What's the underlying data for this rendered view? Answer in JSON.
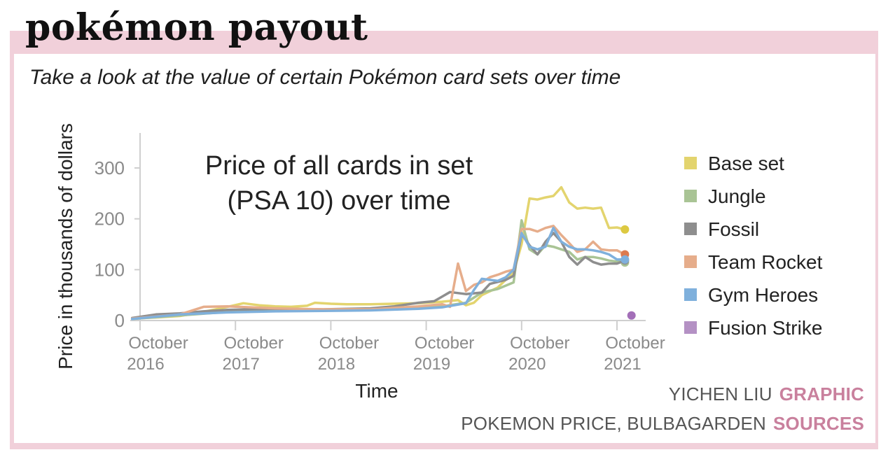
{
  "header": {
    "title": "pokémon payout",
    "subtitle": "Take a look at the value of certain Pokémon card sets over time"
  },
  "credits": {
    "author_name": "YICHEN LIU",
    "author_role": "GRAPHIC",
    "sources_names": "POKEMON PRICE, BULBAGARDEN",
    "sources_role": "SOURCES"
  },
  "colors": {
    "frame": "#f1d0da",
    "accent": "#c9809d",
    "axis": "#cfcfcf"
  },
  "chart_data": {
    "type": "line",
    "title": "Price of all cards in set (PSA 10) over time",
    "title_lines": [
      "Price of all cards in set",
      "(PSA 10) over time"
    ],
    "xlabel": "Time",
    "ylabel": "Price in thousands of dollars",
    "ylim": [
      0,
      350
    ],
    "xlim": [
      "2016-09",
      "2021-12"
    ],
    "y_ticks": [
      0,
      100,
      200,
      300
    ],
    "x_ticks": [
      {
        "date": "2016-10",
        "label1": "October",
        "label2": "2016"
      },
      {
        "date": "2017-10",
        "label1": "October",
        "label2": "2017"
      },
      {
        "date": "2018-10",
        "label1": "October",
        "label2": "2018"
      },
      {
        "date": "2019-10",
        "label1": "October",
        "label2": "2019"
      },
      {
        "date": "2020-10",
        "label1": "October",
        "label2": "2020"
      },
      {
        "date": "2021-10",
        "label1": "October",
        "label2": "2021"
      }
    ],
    "grid": false,
    "legend_position": "right",
    "series": [
      {
        "name": "Base set",
        "color": "#e3d46e",
        "points": [
          [
            "2016-09",
            4
          ],
          [
            "2016-12",
            6
          ],
          [
            "2017-03",
            9
          ],
          [
            "2017-06",
            17
          ],
          [
            "2017-09",
            27
          ],
          [
            "2017-11",
            34
          ],
          [
            "2018-01",
            30
          ],
          [
            "2018-03",
            28
          ],
          [
            "2018-05",
            27
          ],
          [
            "2018-07",
            29
          ],
          [
            "2018-08",
            35
          ],
          [
            "2018-10",
            33
          ],
          [
            "2018-12",
            32
          ],
          [
            "2019-03",
            32
          ],
          [
            "2019-06",
            33
          ],
          [
            "2019-09",
            34
          ],
          [
            "2019-12",
            37
          ],
          [
            "2020-02",
            40
          ],
          [
            "2020-03",
            30
          ],
          [
            "2020-04",
            35
          ],
          [
            "2020-05",
            50
          ],
          [
            "2020-07",
            65
          ],
          [
            "2020-08",
            80
          ],
          [
            "2020-09",
            95
          ],
          [
            "2020-10",
            150
          ],
          [
            "2020-11",
            240
          ],
          [
            "2020-12",
            238
          ],
          [
            "2021-01",
            242
          ],
          [
            "2021-02",
            245
          ],
          [
            "2021-03",
            262
          ],
          [
            "2021-04",
            232
          ],
          [
            "2021-05",
            220
          ],
          [
            "2021-06",
            222
          ],
          [
            "2021-07",
            220
          ],
          [
            "2021-08",
            222
          ],
          [
            "2021-09",
            182
          ],
          [
            "2021-10",
            183
          ],
          [
            "2021-11",
            179
          ]
        ],
        "end": 179
      },
      {
        "name": "Jungle",
        "color": "#a9c495",
        "points": [
          [
            "2016-09",
            3
          ],
          [
            "2017-03",
            10
          ],
          [
            "2017-09",
            17
          ],
          [
            "2018-03",
            19
          ],
          [
            "2018-09",
            20
          ],
          [
            "2019-03",
            21
          ],
          [
            "2019-09",
            24
          ],
          [
            "2019-12",
            28
          ],
          [
            "2020-03",
            35
          ],
          [
            "2020-05",
            55
          ],
          [
            "2020-07",
            62
          ],
          [
            "2020-09",
            75
          ],
          [
            "2020-10",
            197
          ],
          [
            "2020-11",
            140
          ],
          [
            "2020-12",
            130
          ],
          [
            "2021-01",
            148
          ],
          [
            "2021-02",
            145
          ],
          [
            "2021-03",
            140
          ],
          [
            "2021-04",
            135
          ],
          [
            "2021-05",
            120
          ],
          [
            "2021-06",
            125
          ],
          [
            "2021-07",
            125
          ],
          [
            "2021-08",
            122
          ],
          [
            "2021-09",
            118
          ],
          [
            "2021-10",
            116
          ],
          [
            "2021-11",
            114
          ]
        ],
        "end": 114
      },
      {
        "name": "Fossil",
        "color": "#8e8e8e",
        "points": [
          [
            "2016-09",
            5
          ],
          [
            "2016-12",
            12
          ],
          [
            "2017-03",
            14
          ],
          [
            "2017-06",
            18
          ],
          [
            "2017-09",
            21
          ],
          [
            "2018-03",
            23
          ],
          [
            "2018-09",
            22
          ],
          [
            "2019-03",
            24
          ],
          [
            "2019-06",
            28
          ],
          [
            "2019-09",
            35
          ],
          [
            "2019-11",
            38
          ],
          [
            "2020-01",
            56
          ],
          [
            "2020-03",
            52
          ],
          [
            "2020-05",
            55
          ],
          [
            "2020-06",
            72
          ],
          [
            "2020-08",
            80
          ],
          [
            "2020-09",
            88
          ],
          [
            "2020-10",
            170
          ],
          [
            "2020-11",
            148
          ],
          [
            "2020-12",
            130
          ],
          [
            "2021-01",
            155
          ],
          [
            "2021-02",
            172
          ],
          [
            "2021-03",
            155
          ],
          [
            "2021-04",
            125
          ],
          [
            "2021-05",
            110
          ],
          [
            "2021-06",
            125
          ],
          [
            "2021-07",
            115
          ],
          [
            "2021-08",
            110
          ],
          [
            "2021-09",
            112
          ],
          [
            "2021-10",
            112
          ],
          [
            "2021-11",
            118
          ]
        ],
        "end": 118
      },
      {
        "name": "Team Rocket",
        "color": "#e6ad8b",
        "points": [
          [
            "2016-09",
            4
          ],
          [
            "2017-03",
            12
          ],
          [
            "2017-06",
            27
          ],
          [
            "2017-09",
            28
          ],
          [
            "2018-03",
            24
          ],
          [
            "2018-09",
            22
          ],
          [
            "2019-03",
            22
          ],
          [
            "2019-09",
            28
          ],
          [
            "2019-12",
            32
          ],
          [
            "2020-01",
            27
          ],
          [
            "2020-02",
            112
          ],
          [
            "2020-03",
            58
          ],
          [
            "2020-04",
            70
          ],
          [
            "2020-05",
            75
          ],
          [
            "2020-06",
            85
          ],
          [
            "2020-07",
            90
          ],
          [
            "2020-08",
            96
          ],
          [
            "2020-09",
            100
          ],
          [
            "2020-10",
            180
          ],
          [
            "2020-11",
            180
          ],
          [
            "2020-12",
            175
          ],
          [
            "2021-01",
            182
          ],
          [
            "2021-02",
            186
          ],
          [
            "2021-03",
            168
          ],
          [
            "2021-04",
            152
          ],
          [
            "2021-05",
            135
          ],
          [
            "2021-06",
            140
          ],
          [
            "2021-07",
            155
          ],
          [
            "2021-08",
            140
          ],
          [
            "2021-09",
            138
          ],
          [
            "2021-10",
            138
          ],
          [
            "2021-11",
            130
          ]
        ],
        "end": 130
      },
      {
        "name": "Gym Heroes",
        "color": "#7fb0dc",
        "points": [
          [
            "2016-09",
            3
          ],
          [
            "2017-03",
            12
          ],
          [
            "2017-09",
            16
          ],
          [
            "2018-03",
            18
          ],
          [
            "2018-09",
            19
          ],
          [
            "2019-03",
            20
          ],
          [
            "2019-09",
            23
          ],
          [
            "2019-12",
            26
          ],
          [
            "2020-03",
            34
          ],
          [
            "2020-04",
            60
          ],
          [
            "2020-05",
            82
          ],
          [
            "2020-06",
            80
          ],
          [
            "2020-07",
            78
          ],
          [
            "2020-08",
            85
          ],
          [
            "2020-09",
            100
          ],
          [
            "2020-10",
            172
          ],
          [
            "2020-11",
            145
          ],
          [
            "2020-12",
            140
          ],
          [
            "2021-01",
            145
          ],
          [
            "2021-02",
            182
          ],
          [
            "2021-03",
            155
          ],
          [
            "2021-04",
            145
          ],
          [
            "2021-05",
            140
          ],
          [
            "2021-06",
            140
          ],
          [
            "2021-07",
            138
          ],
          [
            "2021-08",
            135
          ],
          [
            "2021-09",
            130
          ],
          [
            "2021-10",
            120
          ],
          [
            "2021-11",
            120
          ]
        ],
        "end": 120
      },
      {
        "name": "Fusion Strike",
        "color": "#b491c4",
        "points": [],
        "end_date": "2021-12",
        "end": 10
      }
    ]
  }
}
